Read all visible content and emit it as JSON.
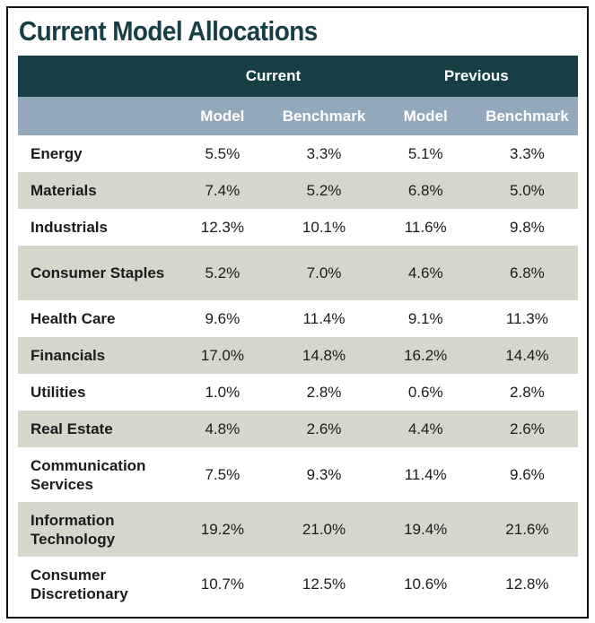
{
  "title": "Current Model Allocations",
  "colors": {
    "title": "#163f45",
    "header_dark": "#163f45",
    "header_light": "#94a8bb",
    "row_shaded": "#d7d6ca"
  },
  "headers": {
    "groups": [
      "Current",
      "Previous"
    ],
    "columns": [
      "Model",
      "Benchmark",
      "Model",
      "Benchmark"
    ]
  },
  "rows": [
    {
      "sector": "Energy",
      "values": [
        "5.5%",
        "3.3%",
        "5.1%",
        "3.3%"
      ]
    },
    {
      "sector": "Materials",
      "values": [
        "7.4%",
        "5.2%",
        "6.8%",
        "5.0%"
      ]
    },
    {
      "sector": "Industrials",
      "values": [
        "12.3%",
        "10.1%",
        "11.6%",
        "9.8%"
      ]
    },
    {
      "sector": "Consumer Staples",
      "values": [
        "5.2%",
        "7.0%",
        "4.6%",
        "6.8%"
      ]
    },
    {
      "sector": "Health Care",
      "values": [
        "9.6%",
        "11.4%",
        "9.1%",
        "11.3%"
      ]
    },
    {
      "sector": "Financials",
      "values": [
        "17.0%",
        "14.8%",
        "16.2%",
        "14.4%"
      ]
    },
    {
      "sector": "Utilities",
      "values": [
        "1.0%",
        "2.8%",
        "0.6%",
        "2.8%"
      ]
    },
    {
      "sector": "Real Estate",
      "values": [
        "4.8%",
        "2.6%",
        "4.4%",
        "2.6%"
      ]
    },
    {
      "sector": "Communication Services",
      "values": [
        "7.5%",
        "9.3%",
        "11.4%",
        "9.6%"
      ]
    },
    {
      "sector": "Information Technology",
      "values": [
        "19.2%",
        "21.0%",
        "19.4%",
        "21.6%"
      ]
    },
    {
      "sector": "Consumer Discretionary",
      "values": [
        "10.7%",
        "12.5%",
        "10.6%",
        "12.8%"
      ]
    }
  ]
}
